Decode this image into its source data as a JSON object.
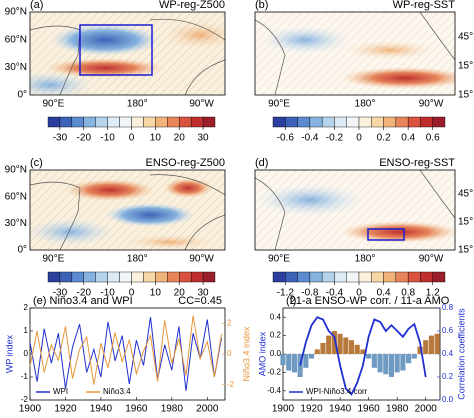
{
  "chart_data": [
    {
      "type": "map",
      "panel": "(a)",
      "title": "WP-reg-Z500",
      "lat_labels": [
        "90°N",
        "60°N",
        "30°N",
        "0°"
      ],
      "lon_labels": [
        "90°E",
        "180°",
        "90°W"
      ],
      "clim": [
        -35,
        35
      ],
      "colorbar_ticks": [
        -30,
        -20,
        -10,
        0,
        10,
        20,
        30
      ],
      "colors": [
        "#2a3f9e",
        "#3c62b8",
        "#5b8bd0",
        "#86b3e0",
        "#b4d3ec",
        "#dcebf5",
        "#f3f6f8",
        "#fbf0dc",
        "#f7d7a6",
        "#f2b37a",
        "#e8845a",
        "#d9533f",
        "#c02f2f",
        "#9a1e2a"
      ]
    },
    {
      "type": "map",
      "panel": "(b)",
      "title": "WP-reg-SST",
      "lat_labels": [
        "45°N",
        "15°N",
        "15°S"
      ],
      "lon_labels": [
        "90°E",
        "180°",
        "90°W"
      ],
      "clim": [
        -0.7,
        0.7
      ],
      "colorbar_ticks": [
        -0.6,
        -0.4,
        -0.2,
        0,
        0.2,
        0.4,
        0.6
      ],
      "colors": [
        "#2a3f9e",
        "#3c62b8",
        "#5b8bd0",
        "#86b3e0",
        "#b4d3ec",
        "#dcebf5",
        "#f3f6f8",
        "#fbf0dc",
        "#f7d7a6",
        "#f2b37a",
        "#e8845a",
        "#d9533f",
        "#c02f2f",
        "#9a1e2a"
      ]
    },
    {
      "type": "map",
      "panel": "(c)",
      "title": "ENSO-reg-Z500",
      "lat_labels": [
        "90°N",
        "60°N",
        "30°N",
        "0°"
      ],
      "lon_labels": [
        "90°E",
        "180°",
        "90°W"
      ],
      "clim": [
        -35,
        35
      ],
      "colorbar_ticks": [
        -30,
        -20,
        -10,
        0,
        10,
        20,
        30
      ],
      "colors": [
        "#2a3f9e",
        "#3c62b8",
        "#5b8bd0",
        "#86b3e0",
        "#b4d3ec",
        "#dcebf5",
        "#f3f6f8",
        "#fbf0dc",
        "#f7d7a6",
        "#f2b37a",
        "#e8845a",
        "#d9533f",
        "#c02f2f",
        "#9a1e2a"
      ]
    },
    {
      "type": "map",
      "panel": "(d)",
      "title": "ENSO-reg-SST",
      "lat_labels": [
        "45°N",
        "15°N",
        "15°S"
      ],
      "lon_labels": [
        "90°E",
        "180°",
        "90°W"
      ],
      "clim": [
        -1.4,
        1.4
      ],
      "colorbar_ticks": [
        -1.2,
        -0.8,
        -0.4,
        0,
        0.4,
        0.8,
        1.2
      ],
      "colors": [
        "#2a3f9e",
        "#3c62b8",
        "#5b8bd0",
        "#86b3e0",
        "#b4d3ec",
        "#dcebf5",
        "#f3f6f8",
        "#fbf0dc",
        "#f7d7a6",
        "#f2b37a",
        "#e8845a",
        "#d9533f",
        "#c02f2f",
        "#9a1e2a"
      ]
    },
    {
      "type": "line",
      "title": "(e) Niño3.4 and WPI",
      "annotation": "CC=0.45",
      "y_label": "WP index",
      "y2_label": "Niño3.4 index",
      "x": [
        1900,
        1904,
        1908,
        1912,
        1916,
        1920,
        1924,
        1928,
        1932,
        1936,
        1940,
        1944,
        1948,
        1952,
        1956,
        1960,
        1964,
        1968,
        1972,
        1976,
        1980,
        1984,
        1988,
        1992,
        1996,
        2000,
        2004,
        2008
      ],
      "xlim": [
        1900,
        2010
      ],
      "xticks": [
        1900,
        1920,
        1940,
        1960,
        1980,
        2000
      ],
      "ylim": [
        -2,
        2
      ],
      "yticks": [
        -2,
        -1,
        0,
        1,
        2
      ],
      "y2lim": [
        -3,
        3
      ],
      "y2ticks": [
        -2,
        0,
        2
      ],
      "y2_color": "#e8963a",
      "series": [
        {
          "name": "WPI",
          "color": "#1f2fd0",
          "values": [
            0.5,
            -1.2,
            1.1,
            -0.4,
            0.9,
            -1.5,
            0.3,
            1.3,
            -0.8,
            0.2,
            -1.0,
            1.4,
            -0.3,
            0.8,
            -1.3,
            0.6,
            -0.5,
            1.6,
            -1.1,
            0.4,
            -0.7,
            1.2,
            -1.6,
            0.9,
            -0.2,
            1.5,
            -1.0,
            0.7
          ]
        },
        {
          "name": "Niño3.4",
          "color": "#e8963a",
          "axis": "y2",
          "values": [
            -0.8,
            1.5,
            -1.2,
            0.6,
            -0.4,
            1.8,
            -1.6,
            0.3,
            1.1,
            -2.0,
            0.7,
            -0.9,
            1.4,
            -0.5,
            0.9,
            -1.3,
            0.2,
            1.2,
            -1.8,
            2.2,
            -0.6,
            1.0,
            -1.4,
            2.5,
            -0.3,
            0.8,
            -1.5,
            1.3
          ]
        }
      ]
    },
    {
      "type": "bar_line",
      "panel": "(f)",
      "title": "21-a ENSO-WP corr. / 11-a AMO",
      "y_label": "AMO index",
      "y2_label": "Correlation coefficients",
      "x": [
        1900,
        1904,
        1908,
        1912,
        1916,
        1920,
        1924,
        1928,
        1932,
        1936,
        1940,
        1944,
        1948,
        1952,
        1956,
        1960,
        1964,
        1968,
        1972,
        1976,
        1980,
        1984,
        1988,
        1992,
        1996,
        2000,
        2004,
        2008
      ],
      "xlim": [
        1900,
        2010
      ],
      "xticks": [
        1900,
        1920,
        1940,
        1960,
        1980,
        2000
      ],
      "ylim": [
        -0.5,
        0.5
      ],
      "yticks": [
        -0.4,
        -0.2,
        {
          "value": 0,
          "label": "0.0"
        },
        0.2,
        0.4
      ],
      "y2lim": [
        0,
        0.8
      ],
      "y2ticks": [
        {
          "value": 0,
          "label": "0.0"
        },
        0.2,
        0.4,
        0.6,
        0.8
      ],
      "y2_color": "#1f2fd0",
      "values": [
        -0.12,
        -0.18,
        -0.2,
        -0.25,
        -0.15,
        -0.05,
        0.05,
        0.12,
        0.2,
        0.25,
        0.22,
        0.18,
        0.15,
        0.1,
        0.05,
        -0.05,
        -0.15,
        -0.2,
        -0.22,
        -0.25,
        -0.2,
        -0.18,
        -0.1,
        -0.05,
        0.08,
        0.15,
        0.2,
        0.22
      ],
      "positive_color": "#b87a3c",
      "negative_color": "#6f9ac2",
      "series": [
        {
          "name": "WPI-Niño3.4 corr",
          "color": "#1f2fd0",
          "axis": "y2",
          "values": [
            null,
            null,
            null,
            0.3,
            0.5,
            0.65,
            0.72,
            0.7,
            0.6,
            0.55,
            0.3,
            0.1,
            0.05,
            0.15,
            0.3,
            0.55,
            0.7,
            0.68,
            0.6,
            0.65,
            0.6,
            0.55,
            0.62,
            0.66,
            0.5,
            0.2,
            null,
            null
          ]
        }
      ]
    }
  ]
}
